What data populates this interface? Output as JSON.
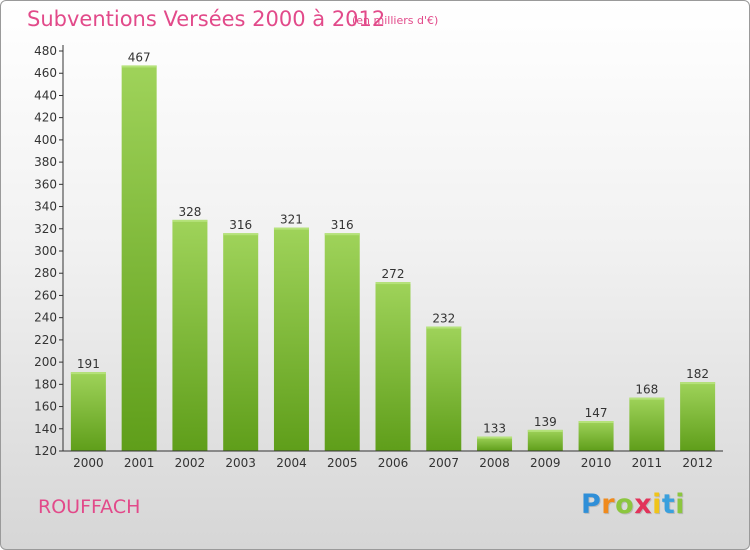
{
  "title": "Subventions Versées 2000 à 2012",
  "unit": "(en milliers d'€)",
  "city": "ROUFFACH",
  "logo": {
    "text": "Proxiti",
    "letters": [
      "P",
      "r",
      "o",
      "x",
      "i",
      "t",
      "i"
    ],
    "colors": [
      "#2f8fd8",
      "#f08a1c",
      "#8cc63f",
      "#e2335a",
      "#f0c419",
      "#3aa0dd",
      "#8cc63f"
    ]
  },
  "colors": {
    "accent": "#e24a8a",
    "bar_top": "#9fd35a",
    "bar_bottom": "#5f9e1a"
  },
  "chart_data": {
    "type": "bar",
    "categories": [
      "2000",
      "2001",
      "2002",
      "2003",
      "2004",
      "2005",
      "2006",
      "2007",
      "2008",
      "2009",
      "2010",
      "2011",
      "2012"
    ],
    "values": [
      191,
      467,
      328,
      316,
      321,
      316,
      272,
      232,
      133,
      139,
      147,
      168,
      182
    ],
    "ylim": [
      120,
      480
    ],
    "yticks": [
      120,
      140,
      160,
      180,
      200,
      220,
      240,
      260,
      280,
      300,
      320,
      340,
      360,
      380,
      400,
      420,
      440,
      460,
      480
    ],
    "grid": false,
    "value_labels": true
  }
}
